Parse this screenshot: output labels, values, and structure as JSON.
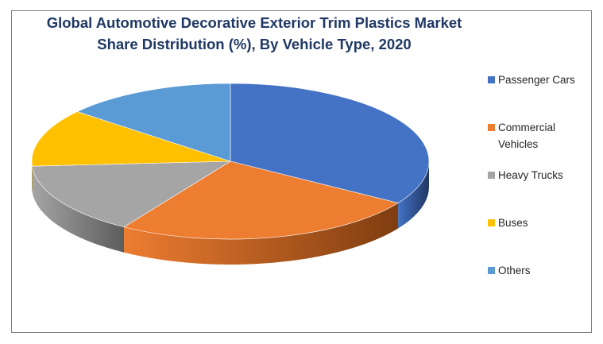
{
  "chart_data": {
    "type": "pie",
    "title": "Global Automotive Decorative Exterior Trim Plastics Market",
    "subtitle": "Share Distribution (%), By Vehicle Type, 2020",
    "legend_position": "right",
    "slices": [
      {
        "name": "Passenger Cars",
        "value": 34,
        "color": "#4472c4",
        "side_color": "#1f3664"
      },
      {
        "name": "Commercial Vehicles",
        "value": 25,
        "color": "#ed7d31",
        "side_color": "#7f3d10"
      },
      {
        "name": "Heavy Trucks",
        "value": 15,
        "color": "#a5a5a5",
        "side_color": "#5c5c5c"
      },
      {
        "name": "Buses",
        "value": 12,
        "color": "#ffc000",
        "side_color": "#8a6800"
      },
      {
        "name": "Others",
        "value": 14,
        "color": "#5b9bd5",
        "side_color": "#2e5a86"
      }
    ]
  }
}
